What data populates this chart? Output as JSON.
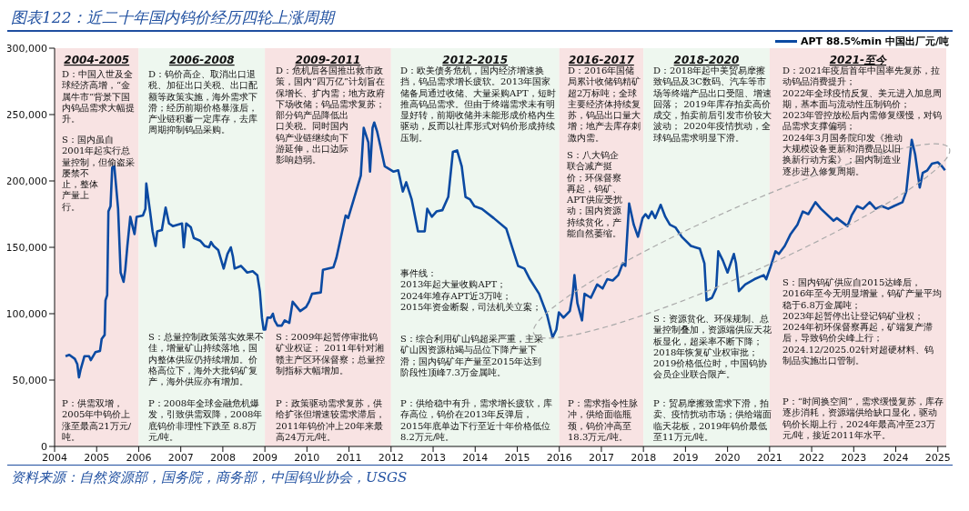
{
  "chart_data": {
    "type": "line",
    "title": "图表122：近二十年国内钨价经历四轮上涨周期",
    "x": [
      2004.26,
      2004.35,
      2004.48,
      2004.54,
      2004.58,
      2004.62,
      2004.71,
      2004.82,
      2004.86,
      2004.97,
      2005.08,
      2005.12,
      2005.19,
      2005.21,
      2005.25,
      2005.28,
      2005.33,
      2005.37,
      2005.42,
      2005.51,
      2005.57,
      2005.64,
      2005.68,
      2005.73,
      2005.8,
      2005.86,
      2005.9,
      2005.95,
      2006.1,
      2006.16,
      2006.18,
      2006.27,
      2006.33,
      2006.4,
      2006.44,
      2006.55,
      2006.64,
      2006.72,
      2006.81,
      2007.03,
      2007.07,
      2007.13,
      2007.24,
      2007.31,
      2007.46,
      2007.57,
      2007.67,
      2007.72,
      2007.78,
      2007.89,
      2008.02,
      2008.11,
      2008.19,
      2008.24,
      2008.28,
      2008.43,
      2008.58,
      2008.71,
      2008.82,
      2008.88,
      2008.93,
      2008.97,
      2009.01,
      2009.06,
      2009.14,
      2009.19,
      2009.23,
      2009.3,
      2009.4,
      2009.47,
      2009.58,
      2009.66,
      2009.84,
      2009.98,
      2010.05,
      2010.12,
      2010.33,
      2010.38,
      2010.63,
      2010.7,
      2010.92,
      2010.98,
      2011.13,
      2011.28,
      2011.35,
      2011.46,
      2011.5,
      2011.56,
      2011.6,
      2011.67,
      2011.74,
      2011.85,
      2012.06,
      2012.17,
      2012.28,
      2012.36,
      2012.49,
      2012.64,
      2012.8,
      2012.86,
      2012.97,
      2013.08,
      2013.22,
      2013.36,
      2013.47,
      2013.57,
      2013.68,
      2013.77,
      2013.88,
      2013.98,
      2014.16,
      2014.44,
      2014.74,
      2014.87,
      2015.02,
      2015.17,
      2015.3,
      2015.52,
      2015.71,
      2015.84,
      2015.93,
      2015.99,
      2016.1,
      2016.25,
      2016.32,
      2016.36,
      2016.43,
      2016.54,
      2016.6,
      2016.75,
      2016.9,
      2017.03,
      2017.14,
      2017.27,
      2017.4,
      2017.51,
      2017.57,
      2017.66,
      2017.77,
      2017.87,
      2017.98,
      2018.05,
      2018.12,
      2018.2,
      2018.28,
      2018.41,
      2018.52,
      2018.63,
      2018.76,
      2018.91,
      2019.13,
      2019.34,
      2019.45,
      2019.5,
      2019.63,
      2019.73,
      2019.78,
      2019.89,
      2020.0,
      2020.15,
      2020.2,
      2020.27,
      2020.42,
      2020.64,
      2020.86,
      2020.92,
      2021.03,
      2021.14,
      2021.22,
      2021.36,
      2021.5,
      2021.66,
      2021.79,
      2021.92,
      2022.09,
      2022.22,
      2022.52,
      2022.6,
      2022.85,
      2022.95,
      2023.08,
      2023.22,
      2023.38,
      2023.52,
      2023.67,
      2023.82,
      2023.95,
      2024.16,
      2024.25,
      2024.36,
      2024.38,
      2024.46,
      2024.57,
      2024.64,
      2024.75,
      2024.86,
      2025.0,
      2025.1,
      2025.17
    ],
    "series": [
      {
        "name": "APT 88.5%min 中国出厂元/吨",
        "color": "#0b4aa2",
        "values": [
          68000,
          69000,
          66000,
          62000,
          52000,
          58000,
          68000,
          68000,
          65000,
          71000,
          72000,
          81000,
          84000,
          110000,
          114000,
          177000,
          181000,
          210000,
          211000,
          179000,
          131000,
          124000,
          133000,
          151000,
          173000,
          165000,
          160000,
          173000,
          174000,
          179000,
          198000,
          177000,
          162000,
          151000,
          162000,
          163000,
          180000,
          168000,
          166000,
          168000,
          150000,
          168000,
          165000,
          157000,
          155000,
          151000,
          150000,
          154000,
          151000,
          148000,
          134000,
          145000,
          150000,
          143000,
          134000,
          136000,
          131000,
          132000,
          129000,
          117000,
          97000,
          88000,
          88000,
          97000,
          97000,
          100000,
          95000,
          91000,
          91000,
          95000,
          93000,
          109000,
          102000,
          105000,
          109000,
          115000,
          116000,
          133000,
          135000,
          142000,
          174000,
          172000,
          188000,
          204000,
          240000,
          229000,
          207000,
          240000,
          244000,
          237000,
          227000,
          211000,
          207000,
          208000,
          192000,
          199000,
          186000,
          162000,
          162000,
          179000,
          173000,
          177000,
          178000,
          188000,
          222000,
          223000,
          211000,
          188000,
          186000,
          181000,
          179000,
          172000,
          164000,
          151000,
          136000,
          134000,
          126000,
          115000,
          99000,
          82000,
          88000,
          101000,
          97000,
          102000,
          115000,
          129000,
          108000,
          95000,
          115000,
          112000,
          122000,
          119000,
          126000,
          125000,
          129000,
          138000,
          136000,
          183000,
          167000,
          158000,
          172000,
          175000,
          172000,
          177000,
          172000,
          182000,
          173000,
          167000,
          165000,
          158000,
          151000,
          149000,
          138000,
          110000,
          112000,
          119000,
          147000,
          140000,
          131000,
          145000,
          138000,
          117000,
          122000,
          126000,
          129000,
          126000,
          136000,
          147000,
          145000,
          151000,
          160000,
          167000,
          177000,
          175000,
          184000,
          179000,
          170000,
          172000,
          166000,
          174000,
          181000,
          179000,
          184000,
          179000,
          181000,
          179000,
          181000,
          184000,
          192000,
          225000,
          231000,
          220000,
          195000,
          206000,
          208000,
          213000,
          214000,
          211000,
          208000
        ]
      }
    ],
    "xlim": [
      2004,
      2025.2
    ],
    "xticks": [
      2004,
      2005,
      2006,
      2007,
      2008,
      2009,
      2010,
      2011,
      2012,
      2013,
      2014,
      2015,
      2016,
      2017,
      2018,
      2019,
      2020,
      2021,
      2022,
      2023,
      2024,
      2025
    ],
    "ylim": [
      0,
      300000
    ],
    "yticks": [
      0,
      {
        "value": 50000,
        "label": "50,000"
      },
      {
        "value": 100000,
        "label": "100,000"
      },
      {
        "value": 150000,
        "label": "150,000"
      },
      {
        "value": 200000,
        "label": "200,000"
      },
      {
        "value": 250000,
        "label": "250,000"
      },
      {
        "value": 300000,
        "label": "300,000"
      }
    ],
    "legend": "top right",
    "bands": [
      {
        "axis": "x",
        "from": 2004,
        "to": 2006,
        "label": "2004-2005",
        "color": "#f8e3e3"
      },
      {
        "axis": "x",
        "from": 2006,
        "to": 2009,
        "label": "2006-2008",
        "color": "#eef7ef"
      },
      {
        "axis": "x",
        "from": 2009,
        "to": 2012,
        "label": "2009-2011",
        "color": "#f8e3e3"
      },
      {
        "axis": "x",
        "from": 2012,
        "to": 2016,
        "label": "2012-2015",
        "color": "#eef7ef"
      },
      {
        "axis": "x",
        "from": 2016,
        "to": 2018,
        "label": "2016-2017",
        "color": "#f8e3e3"
      },
      {
        "axis": "x",
        "from": 2018,
        "to": 2021,
        "label": "2018-2020",
        "color": "#eef7ef"
      },
      {
        "axis": "x",
        "from": 2021,
        "to": 2025.2,
        "label": "2021-至今",
        "color": "#f8e3e3"
      }
    ],
    "annotations": [
      "D：中国入世及全球经济高增，“金属牛市”背景下国内钨品需求大幅提升。",
      "S：国内虽自2001年起实行总量控制，但偷盗采屡禁不止，整体产量上行。",
      "P：供需双增，2005年中钨价上涨至最高21万元/吨。",
      "D：钨价高企、取消出口退税、加征出口关税、出口配额等政策实施，海外需求下滑；经历前期价格暴涨后，产业链积蓄一定库存，去库周期抑制钨品采购。",
      "S：总量控制政策落实效果不佳，增量矿山持续落地，国内整体供应仍持续增加。价格高位下，海外大批钨矿复产，海外供应亦有增加。",
      "P：2008年全球金融危机爆发，引致供需双降，2008年底钨价非理性下跌至 8.8万元/吨。",
      "D：危机后各国推出救市政策，国内“四万亿”计划旨在保增长、扩内需；地方政府下场收储；钨品需求复苏；部分钨产品降低出口关税。同时国内钨产业链继续向下游延伸，出口边际影响趋弱。",
      "S：2009年起暂停审批钨矿业权证； 2011年针对湘赣主产区环保督察；总量控制指标大幅增加。",
      "P：政策驱动需求复苏，供给扩张但增速较需求滞后，2011年钨价冲上20年来最高24万元/吨。",
      "D：欧美债务危机，国内经济增速换挡，钨品需求增长疲软。2013年国家储备局通过收储、大量采购APT，短时推高钨品需求。但由于终端需求未有明显好转，前期收储并未能形成价格内生驱动，反而以社库形式对钨价形成持续压制。",
      "事件线：\n2013年起大量收购APT；\n2024年堆存APT近3万吨；\n2015年资金断裂，司法机关立案；",
      "S：综合利用矿山钨超采严重，主采矿山因资源枯竭与品位下降产量下滑；国内钨矿年产量至2015年达到阶段性顶峰7.3万金属吨。",
      "P：供给稳中有升，需求增长疲软，库存高位，钨价在2013年反弹后，2015年底单边下行至近十年价格低位8.2万元/吨。",
      "D：2016年国储局累计收储钨精矿超2万标吨；全球主要经济体持续复苏，钨品出口量大增；地产去库存刺激内需。",
      "S：八大钨企联合减产挺价；环保督察再起，钨矿、APT供应受扰动；国内资源持续贫化，产能自然萎缩。",
      "P：需求指令性脉冲，供给面临瓶颈，钨价冲高至18.3万元/吨。",
      "D：2018年起中美贸易摩擦致钨品及3C数码、汽车等市场等终端产品出口受阻、增速回落； 2019年库存拍卖高价成交，拍卖前后引发市价较大波动； 2020年疫情扰动，全球钨品需求明显下滑。",
      "S：资源贫化、环保规制、总量控制叠加，资源端供应天花板显化，超采率不断下降； 2018年恢复矿业权审批； 2019价格低位时，中国钨协会员企业联合限产。",
      "P：贸易摩擦致需求下滑，拍卖、疫情扰动市场；供给端面临天花板，2019年钨价最低至11万元/吨。",
      "D：2021年疫后首年中国率先复苏，拉动钨品消费提升；\n2022年全球疫情反复、美元进入加息周期，基本面与流动性压制钨价；\n2023年管控放松后内需修复缓慢，对钨品需求支撑偏弱；\n2024年3月国务院印发《推动大规模设备更新和消费品以旧换新行动方案》；国内制造业逐步进入修复周期。",
      "S：国内钨矿供应自2015达峰后，2016年至今无明显增量，钨矿产量平均稳于6.8万金属吨；\n2023年起暂停出让登记钨矿业权；\n2024年初环保督察再起，矿端复产滞后，导致钨价尖峰上行；\n2024.12/2025.02针对超硬材料、钨制品实施出口管制。",
      "P：“时间换空间”，需求缓慢复苏，库存逐步消耗，资源端供给缺口显化，驱动钨价长期上行，2024年最高冲至23万元/吨，接近2011年水平。",
      "资料来源：自然资源部，国务院，商务部，中国钨业协会，USGS"
    ]
  }
}
